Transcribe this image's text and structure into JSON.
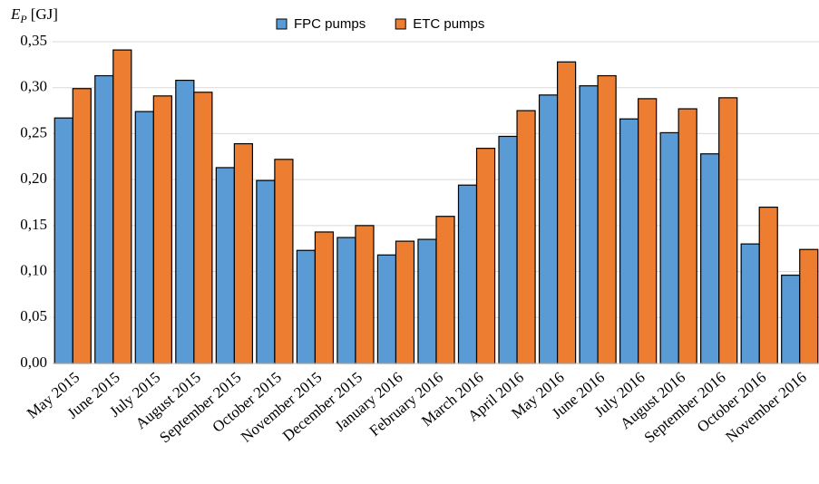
{
  "chart_data": {
    "type": "bar",
    "ylabel": {
      "symbol": "E",
      "subscript": "P",
      "unit": "[GJ]"
    },
    "categories": [
      "May 2015",
      "June 2015",
      "July 2015",
      "August 2015",
      "September 2015",
      "October 2015",
      "November 2015",
      "December 2015",
      "January 2016",
      "February 2016",
      "March 2016",
      "April 2016",
      "May 2016",
      "June 2016",
      "July 2016",
      "August 2016",
      "September 2016",
      "October 2016",
      "November 2016"
    ],
    "series": [
      {
        "name": "FPC pumps",
        "color": "#5b9bd5",
        "values": [
          0.267,
          0.313,
          0.274,
          0.308,
          0.213,
          0.199,
          0.123,
          0.137,
          0.118,
          0.135,
          0.194,
          0.247,
          0.292,
          0.302,
          0.266,
          0.251,
          0.228,
          0.13,
          0.096
        ]
      },
      {
        "name": "ETC pumps",
        "color": "#ed7d31",
        "values": [
          0.299,
          0.341,
          0.291,
          0.295,
          0.239,
          0.222,
          0.143,
          0.15,
          0.133,
          0.16,
          0.234,
          0.275,
          0.328,
          0.313,
          0.288,
          0.277,
          0.289,
          0.17,
          0.124
        ]
      }
    ],
    "ylim": [
      0,
      0.35
    ],
    "yticks": [
      {
        "value": 0,
        "label": "0,00"
      },
      {
        "value": 0.05,
        "label": "0,05"
      },
      {
        "value": 0.1,
        "label": "0,10"
      },
      {
        "value": 0.15,
        "label": "0,15"
      },
      {
        "value": 0.2,
        "label": "0,20"
      },
      {
        "value": 0.25,
        "label": "0,25"
      },
      {
        "value": 0.3,
        "label": "0,30"
      },
      {
        "value": 0.35,
        "label": "0,35"
      }
    ],
    "grid": true,
    "legend": "top"
  }
}
